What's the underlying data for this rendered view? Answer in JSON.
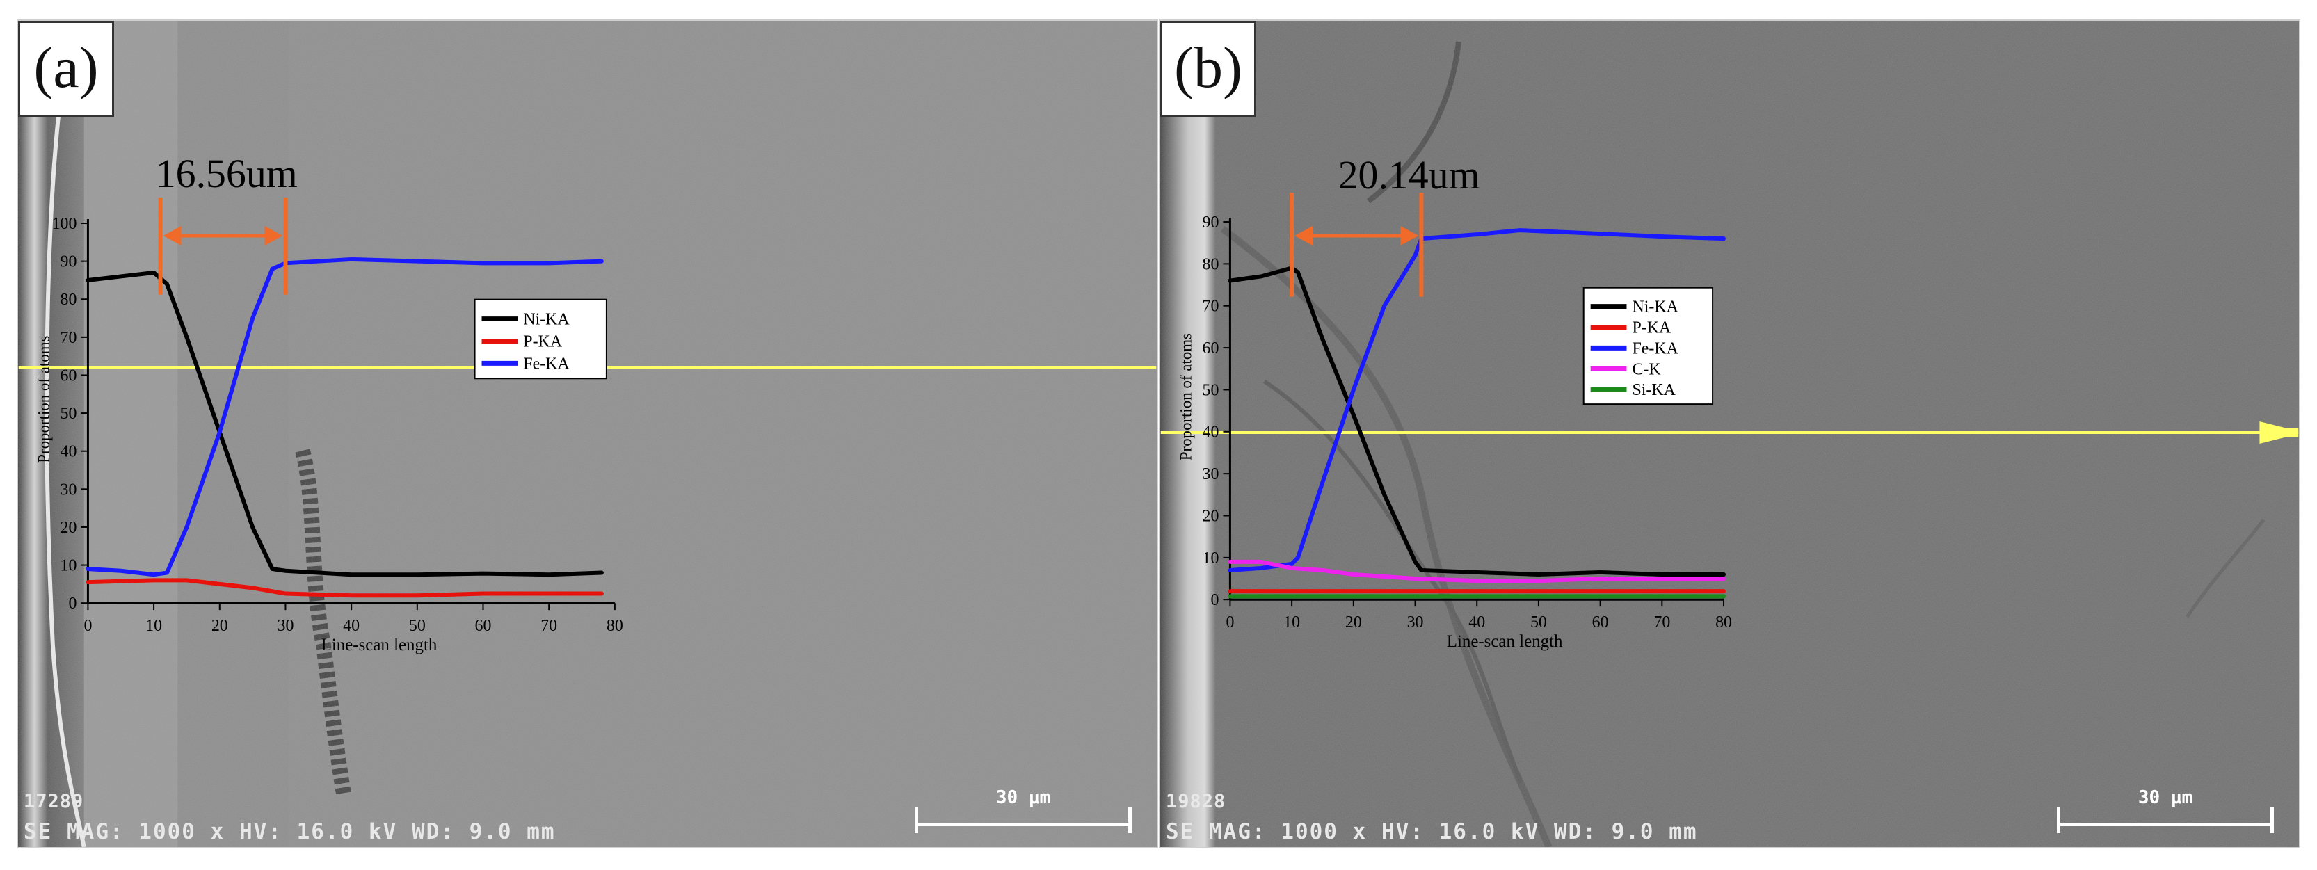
{
  "panels": [
    {
      "label": "(a)",
      "specimen_id": "17289",
      "acquisition": "SE MAG: 1000 x  HV: 16.0 kV  WD: 9.0 mm",
      "scale_bar": "30 μm"
    },
    {
      "label": "(b)",
      "specimen_id": "19828",
      "acquisition": "SE MAG: 1000 x  HV: 16.0 kV  WD: 9.0 mm",
      "scale_bar": "30 μm"
    }
  ],
  "colors": {
    "Ni-KA": "#000000",
    "P-KA": "#e8120c",
    "Fe-KA": "#1a1aff",
    "C-K": "#ee22ee",
    "Si-KA": "#1a8a1a",
    "scan_line": "#ffff66",
    "width_marker": "#f06a2a"
  },
  "chart_data": [
    {
      "type": "line",
      "panel": "(a)",
      "title": "",
      "xlabel": "Line-scan length",
      "ylabel": "Proportion of atoms",
      "xlim": [
        0,
        80
      ],
      "ylim": [
        0,
        100
      ],
      "xticks": [
        0,
        10,
        20,
        30,
        40,
        50,
        60,
        70,
        80
      ],
      "yticks": [
        0,
        10,
        20,
        30,
        40,
        50,
        60,
        70,
        80,
        90,
        100
      ],
      "legend_position": "right",
      "annotation": {
        "text": "16.56um",
        "x_start": 11,
        "x_end": 30
      },
      "series": [
        {
          "name": "Ni-KA",
          "color": "#000000",
          "x": [
            0,
            5,
            10,
            12,
            15,
            20,
            25,
            28,
            30,
            40,
            50,
            60,
            70,
            78
          ],
          "y": [
            85,
            86,
            87,
            84,
            70,
            45,
            20,
            9,
            8.5,
            7.5,
            7.5,
            7.8,
            7.5,
            8
          ]
        },
        {
          "name": "P-KA",
          "color": "#e8120c",
          "x": [
            0,
            10,
            15,
            20,
            25,
            30,
            40,
            50,
            60,
            70,
            78
          ],
          "y": [
            5.5,
            6,
            6,
            5,
            4,
            2.5,
            2,
            2,
            2.5,
            2.5,
            2.5
          ]
        },
        {
          "name": "Fe-KA",
          "color": "#1a1aff",
          "x": [
            0,
            5,
            10,
            12,
            15,
            20,
            25,
            28,
            30,
            40,
            50,
            60,
            70,
            78
          ],
          "y": [
            9,
            8.5,
            7.5,
            8,
            20,
            45,
            75,
            88,
            89.5,
            90.5,
            90,
            89.5,
            89.5,
            90
          ]
        }
      ]
    },
    {
      "type": "line",
      "panel": "(b)",
      "title": "",
      "xlabel": "Line-scan length",
      "ylabel": "Proportion of atoms",
      "xlim": [
        0,
        80
      ],
      "ylim": [
        0,
        90
      ],
      "xticks": [
        0,
        10,
        20,
        30,
        40,
        50,
        60,
        70,
        80
      ],
      "yticks": [
        0,
        10,
        20,
        30,
        40,
        50,
        60,
        70,
        80,
        90
      ],
      "legend_position": "right",
      "annotation": {
        "text": "20.14um",
        "x_start": 10,
        "x_end": 31
      },
      "series": [
        {
          "name": "Ni-KA",
          "color": "#000000",
          "x": [
            0,
            5,
            10,
            11,
            15,
            20,
            25,
            30,
            31,
            40,
            50,
            60,
            70,
            80
          ],
          "y": [
            76,
            77,
            79,
            78,
            62,
            44,
            25,
            9,
            7,
            6.5,
            6,
            6.5,
            6,
            6
          ]
        },
        {
          "name": "P-KA",
          "color": "#e8120c",
          "x": [
            0,
            10,
            20,
            30,
            40,
            50,
            60,
            70,
            80
          ],
          "y": [
            2,
            2,
            2,
            2,
            2,
            2,
            2,
            2,
            2
          ]
        },
        {
          "name": "Fe-KA",
          "color": "#1a1aff",
          "x": [
            0,
            5,
            10,
            11,
            15,
            20,
            25,
            30,
            31,
            40,
            47,
            55,
            70,
            80
          ],
          "y": [
            7,
            7.5,
            8.5,
            10,
            28,
            50,
            70,
            82,
            86,
            87,
            88,
            87.5,
            86.5,
            86
          ]
        },
        {
          "name": "C-K",
          "color": "#ee22ee",
          "x": [
            0,
            5,
            10,
            15,
            20,
            30,
            40,
            50,
            60,
            70,
            80
          ],
          "y": [
            9,
            9,
            7.5,
            7,
            6,
            5,
            4.5,
            4.5,
            5,
            5,
            5
          ]
        },
        {
          "name": "Si-KA",
          "color": "#1a8a1a",
          "x": [
            0,
            10,
            20,
            30,
            40,
            50,
            60,
            70,
            80
          ],
          "y": [
            0.8,
            0.8,
            0.8,
            0.8,
            0.8,
            0.8,
            0.8,
            0.8,
            0.8
          ]
        }
      ]
    }
  ]
}
